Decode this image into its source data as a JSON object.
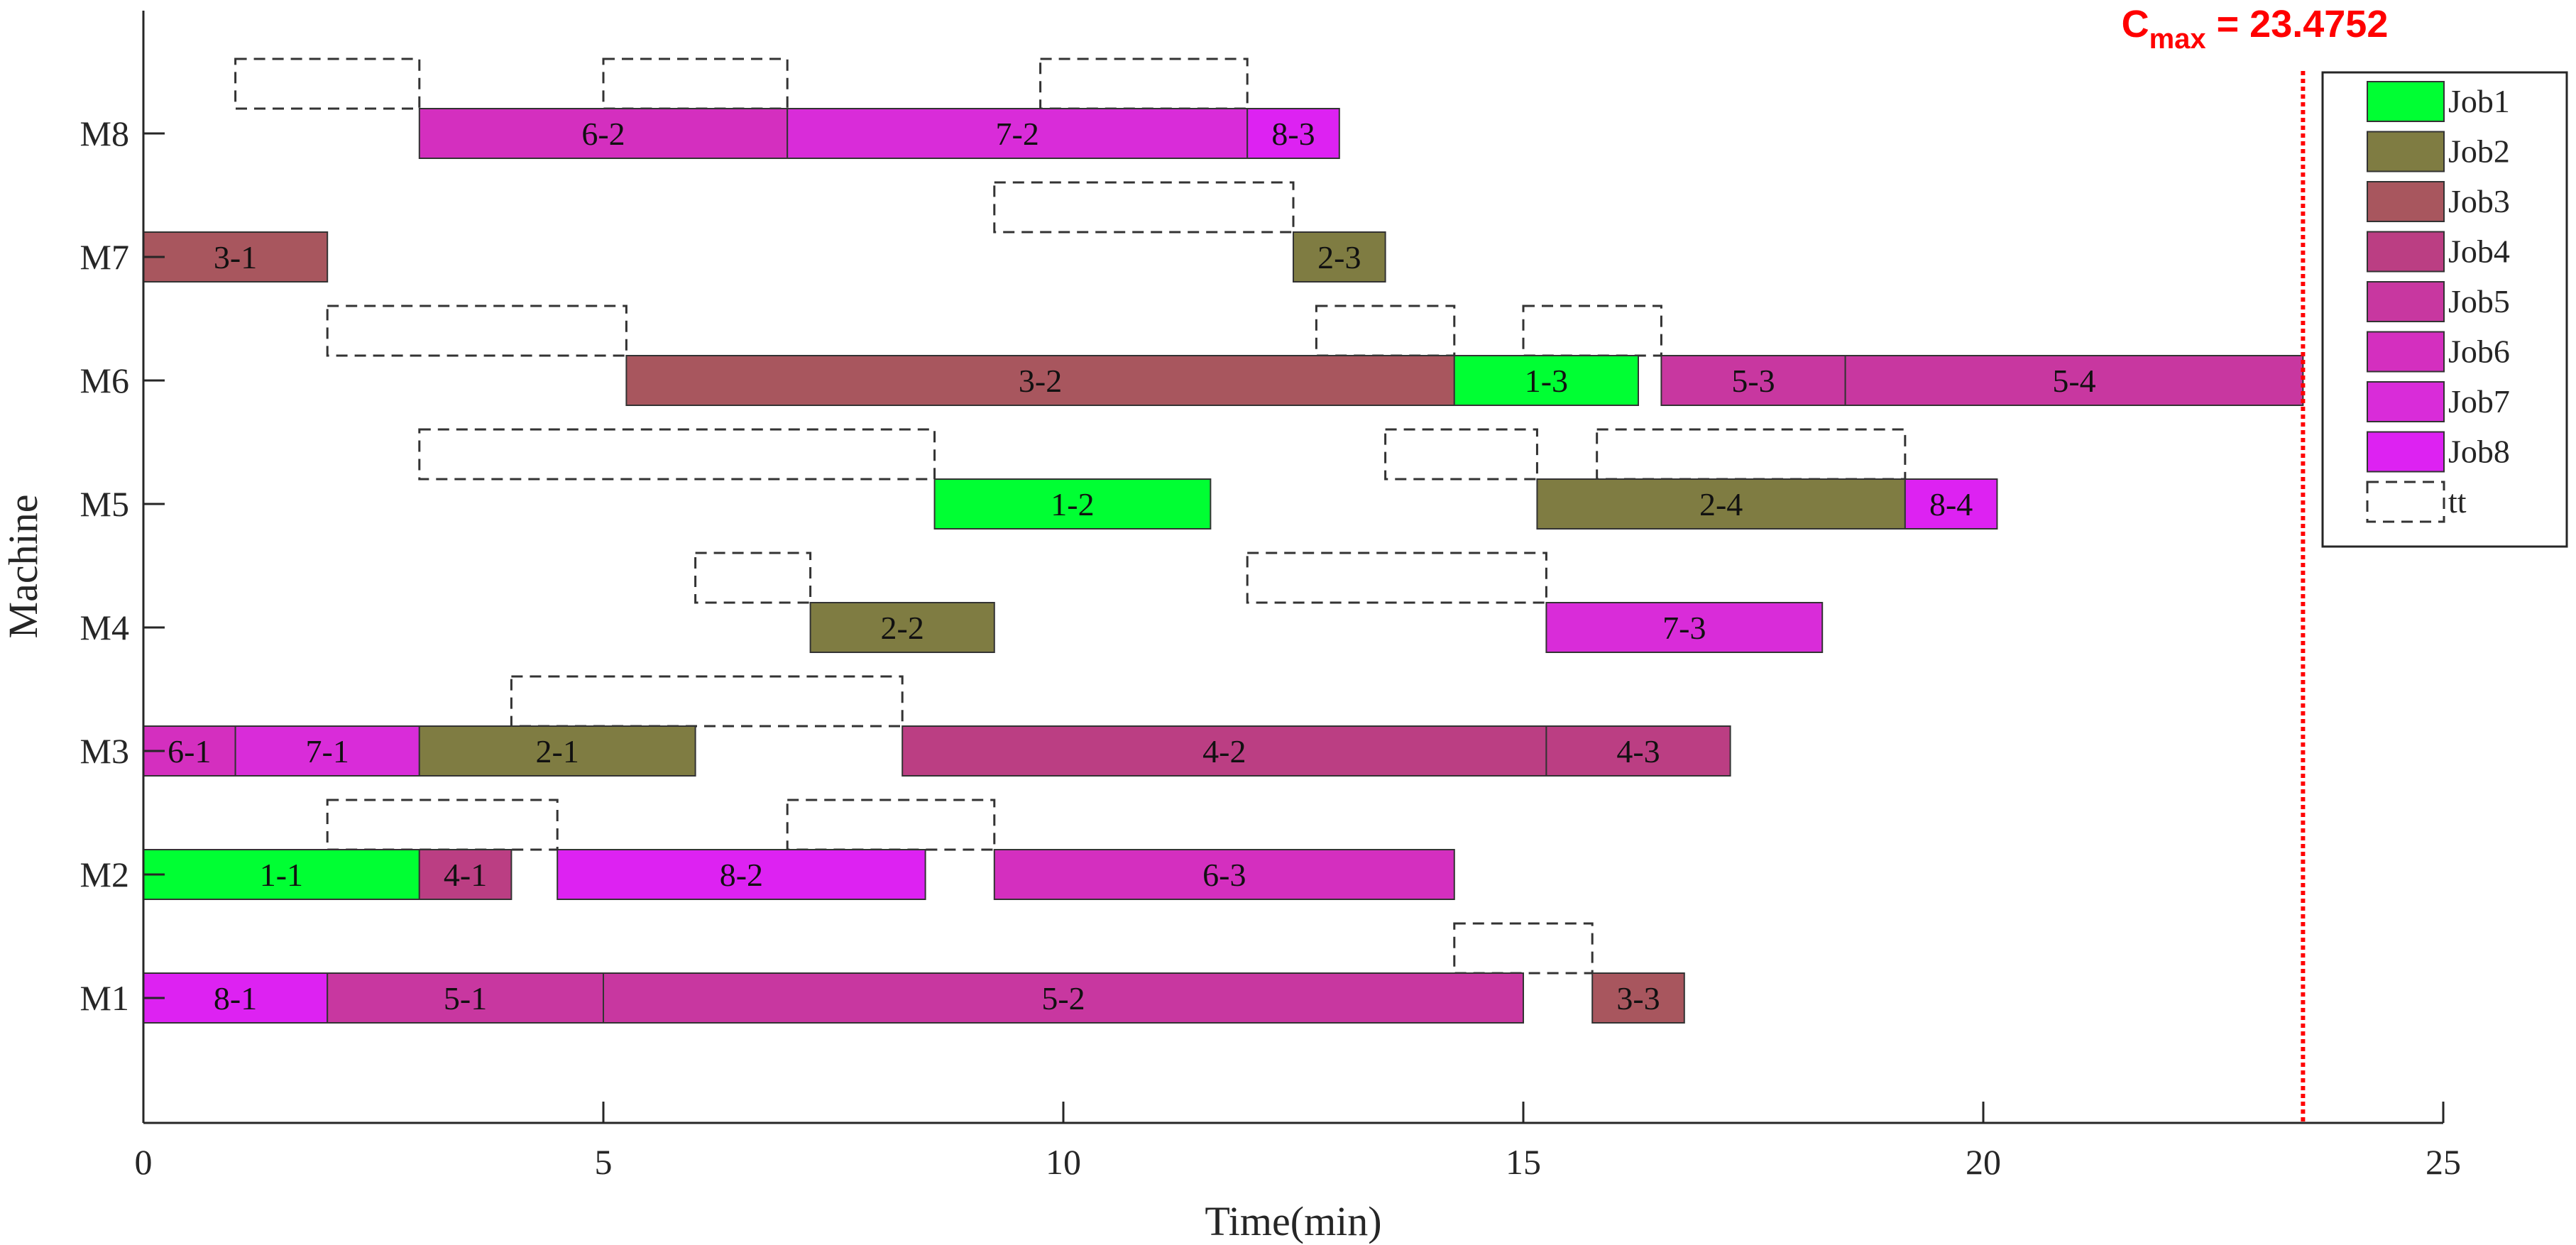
{
  "chart_data": {
    "type": "gantt",
    "xlabel": "Time(min)",
    "ylabel": "Machine",
    "xlim": [
      0,
      25
    ],
    "xticks": [
      "0",
      "5",
      "10",
      "15",
      "20",
      "25"
    ],
    "machines": [
      "M1",
      "M2",
      "M3",
      "M4",
      "M5",
      "M6",
      "M7",
      "M8"
    ],
    "cmax": {
      "base": "C",
      "sub": "max",
      "value_text": " = 23.4752",
      "value": 23.4752,
      "color": "#ff0000"
    },
    "legend": [
      {
        "label": "Job1",
        "color": "#00ff33"
      },
      {
        "label": "Job2",
        "color": "#7f7c42"
      },
      {
        "label": "Job3",
        "color": "#a8565e"
      },
      {
        "label": "Job4",
        "color": "#bb3e83"
      },
      {
        "label": "Job5",
        "color": "#c837a0"
      },
      {
        "label": "Job6",
        "color": "#d42fbf"
      },
      {
        "label": "Job7",
        "color": "#d92cd9"
      },
      {
        "label": "Job8",
        "color": "#dd22f2"
      },
      {
        "label": "tt",
        "dashed": true
      }
    ],
    "operations": [
      {
        "label": "8-1",
        "job": 8,
        "machine": "M1",
        "start": 0,
        "end": 2
      },
      {
        "label": "5-1",
        "job": 5,
        "machine": "M1",
        "start": 2,
        "end": 5
      },
      {
        "label": "5-2",
        "job": 5,
        "machine": "M1",
        "start": 5,
        "end": 15
      },
      {
        "label": "3-3",
        "job": 3,
        "machine": "M1",
        "start": 15.75,
        "end": 16.75
      },
      {
        "label": "1-1",
        "job": 1,
        "machine": "M2",
        "start": 0,
        "end": 3
      },
      {
        "label": "4-1",
        "job": 4,
        "machine": "M2",
        "start": 3,
        "end": 4
      },
      {
        "label": "8-2",
        "job": 8,
        "machine": "M2",
        "start": 4.5,
        "end": 8.5
      },
      {
        "label": "6-3",
        "job": 6,
        "machine": "M2",
        "start": 9.25,
        "end": 14.25
      },
      {
        "label": "6-1",
        "job": 6,
        "machine": "M3",
        "start": 0,
        "end": 1
      },
      {
        "label": "7-1",
        "job": 7,
        "machine": "M3",
        "start": 1,
        "end": 3
      },
      {
        "label": "2-1",
        "job": 2,
        "machine": "M3",
        "start": 3,
        "end": 6
      },
      {
        "label": "4-2",
        "job": 4,
        "machine": "M3",
        "start": 8.25,
        "end": 15.25
      },
      {
        "label": "4-3",
        "job": 4,
        "machine": "M3",
        "start": 15.25,
        "end": 17.25
      },
      {
        "label": "2-2",
        "job": 2,
        "machine": "M4",
        "start": 7.25,
        "end": 9.25
      },
      {
        "label": "7-3",
        "job": 7,
        "machine": "M4",
        "start": 15.25,
        "end": 18.25
      },
      {
        "label": "1-2",
        "job": 1,
        "machine": "M5",
        "start": 8.6,
        "end": 11.6
      },
      {
        "label": "2-4",
        "job": 2,
        "machine": "M5",
        "start": 15.15,
        "end": 19.15
      },
      {
        "label": "8-4",
        "job": 8,
        "machine": "M5",
        "start": 19.15,
        "end": 20.15
      },
      {
        "label": "3-2",
        "job": 3,
        "machine": "M6",
        "start": 5.25,
        "end": 14.25
      },
      {
        "label": "1-3",
        "job": 1,
        "machine": "M6",
        "start": 14.25,
        "end": 16.25
      },
      {
        "label": "5-3",
        "job": 5,
        "machine": "M6",
        "start": 16.5,
        "end": 18.5
      },
      {
        "label": "5-4",
        "job": 5,
        "machine": "M6",
        "start": 18.5,
        "end": 23.4752
      },
      {
        "label": "3-1",
        "job": 3,
        "machine": "M7",
        "start": 0,
        "end": 2
      },
      {
        "label": "2-3",
        "job": 2,
        "machine": "M7",
        "start": 12.5,
        "end": 13.5
      },
      {
        "label": "6-2",
        "job": 6,
        "machine": "M8",
        "start": 3,
        "end": 7
      },
      {
        "label": "7-2",
        "job": 7,
        "machine": "M8",
        "start": 7,
        "end": 12
      },
      {
        "label": "8-3",
        "job": 8,
        "machine": "M8",
        "start": 12,
        "end": 13
      }
    ],
    "transport": [
      {
        "machine": "M1",
        "start": 14.25,
        "end": 15.75
      },
      {
        "machine": "M2",
        "start": 2,
        "end": 4.5
      },
      {
        "machine": "M2",
        "start": 7,
        "end": 9.25
      },
      {
        "machine": "M3",
        "start": 4,
        "end": 8.25
      },
      {
        "machine": "M4",
        "start": 6,
        "end": 7.25
      },
      {
        "machine": "M4",
        "start": 12,
        "end": 15.25
      },
      {
        "machine": "M5",
        "start": 3,
        "end": 8.6
      },
      {
        "machine": "M5",
        "start": 13.5,
        "end": 15.15
      },
      {
        "machine": "M5",
        "start": 15.8,
        "end": 19.15
      },
      {
        "machine": "M6",
        "start": 2,
        "end": 5.25
      },
      {
        "machine": "M6",
        "start": 12.75,
        "end": 14.25
      },
      {
        "machine": "M6",
        "start": 15,
        "end": 16.5
      },
      {
        "machine": "M7",
        "start": 9.25,
        "end": 12.5
      },
      {
        "machine": "M8",
        "start": 1,
        "end": 3
      },
      {
        "machine": "M8",
        "start": 5,
        "end": 7
      },
      {
        "machine": "M8",
        "start": 9.75,
        "end": 12
      }
    ]
  }
}
